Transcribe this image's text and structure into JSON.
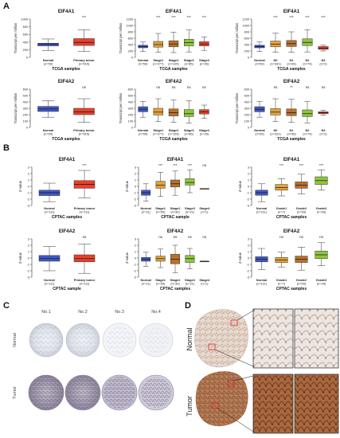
{
  "panels": {
    "A": "A",
    "B": "B",
    "C": "C",
    "D": "D"
  },
  "ylabels": {
    "tpm": "Transcript per million",
    "z": "Z-value"
  },
  "chart_data": [
    {
      "id": "A1",
      "type": "box",
      "title": "EIF4A1",
      "xlabel": "TCGA samples",
      "ylim": [
        0,
        1000
      ],
      "yticks": [
        0,
        200,
        400,
        600,
        800,
        1000
      ],
      "categories": [
        "Normal\n(n=59)",
        "Primary tumor\n(n=515)"
      ],
      "colors": [
        "#3f58c9",
        "#e8412b"
      ],
      "sig": [
        "",
        "***"
      ],
      "boxes": [
        {
          "min": 180,
          "q1": 300,
          "med": 340,
          "q3": 370,
          "max": 480
        },
        {
          "min": 150,
          "q1": 310,
          "med": 390,
          "q3": 490,
          "max": 720
        }
      ]
    },
    {
      "id": "A2",
      "type": "box",
      "title": "EIF4A1",
      "xlabel": "TCGA samples",
      "ylim": [
        0,
        1200
      ],
      "yticks": [
        0,
        200,
        400,
        600,
        800,
        1000,
        1200
      ],
      "categories": [
        "Normal\n(n=59)",
        "Stage1\n(n=277)",
        "Stage2\n(n=125)",
        "Stage3\n(n=85)",
        "Stage4\n(n=26)"
      ],
      "colors": [
        "#3f58c9",
        "#e4a23a",
        "#b9702c",
        "#8fc63c",
        "#e8412b"
      ],
      "sig": [
        "",
        "***",
        "***",
        "***",
        "***"
      ],
      "boxes": [
        {
          "min": 180,
          "q1": 300,
          "med": 340,
          "q3": 380,
          "max": 480
        },
        {
          "min": 160,
          "q1": 320,
          "med": 400,
          "q3": 500,
          "max": 750
        },
        {
          "min": 150,
          "q1": 330,
          "med": 420,
          "q3": 520,
          "max": 790
        },
        {
          "min": 170,
          "q1": 360,
          "med": 460,
          "q3": 570,
          "max": 860
        },
        {
          "min": 220,
          "q1": 360,
          "med": 420,
          "q3": 490,
          "max": 640
        }
      ]
    },
    {
      "id": "A3",
      "type": "box",
      "title": "EIF4A1",
      "xlabel": "TCGA samples",
      "ylim": [
        0,
        1200
      ],
      "yticks": [
        0,
        200,
        400,
        600,
        800,
        1000,
        1200
      ],
      "categories": [
        "Normal\n(n=59)",
        "N0\n(n=331)",
        "N1\n(n=96)",
        "N2\n(n=74)",
        "N3\n(n=2)"
      ],
      "colors": [
        "#3f58c9",
        "#e4a23a",
        "#b9702c",
        "#8fc63c",
        "#e8412b"
      ],
      "sig": [
        "",
        "***",
        "***",
        "***",
        "***"
      ],
      "boxes": [
        {
          "min": 180,
          "q1": 300,
          "med": 340,
          "q3": 380,
          "max": 480
        },
        {
          "min": 160,
          "q1": 330,
          "med": 410,
          "q3": 510,
          "max": 760
        },
        {
          "min": 160,
          "q1": 340,
          "med": 430,
          "q3": 530,
          "max": 800
        },
        {
          "min": 170,
          "q1": 370,
          "med": 470,
          "q3": 580,
          "max": 870
        },
        {
          "min": 200,
          "q1": 250,
          "med": 290,
          "q3": 340,
          "max": 380
        }
      ]
    },
    {
      "id": "A4",
      "type": "box",
      "title": "EIF4A2",
      "xlabel": "TCGA samples",
      "ylim": [
        0,
        600
      ],
      "yticks": [
        0,
        100,
        200,
        300,
        400,
        500,
        600
      ],
      "categories": [
        "Normal\n(n=59)",
        "Primary tumor\n(n=515)"
      ],
      "colors": [
        "#3f58c9",
        "#e8412b"
      ],
      "sig": [
        "",
        "ns"
      ],
      "boxes": [
        {
          "min": 160,
          "q1": 250,
          "med": 290,
          "q3": 330,
          "max": 420
        },
        {
          "min": 80,
          "q1": 200,
          "med": 245,
          "q3": 300,
          "max": 450
        }
      ]
    },
    {
      "id": "A5",
      "type": "box",
      "title": "EIF4A2",
      "xlabel": "TCGA samples",
      "ylim": [
        0,
        600
      ],
      "yticks": [
        0,
        100,
        200,
        300,
        400,
        500,
        600
      ],
      "categories": [
        "Normal\n(n=59)",
        "Stage1\n(n=277)",
        "Stage2\n(n=125)",
        "Stage3\n(n=85)",
        "Stage4\n(n=26)"
      ],
      "colors": [
        "#3f58c9",
        "#e4a23a",
        "#b9702c",
        "#8fc63c",
        "#e8412b"
      ],
      "sig": [
        "",
        "ns",
        "ns",
        "ns",
        "ns"
      ],
      "boxes": [
        {
          "min": 160,
          "q1": 245,
          "med": 285,
          "q3": 325,
          "max": 410
        },
        {
          "min": 90,
          "q1": 195,
          "med": 240,
          "q3": 300,
          "max": 450
        },
        {
          "min": 80,
          "q1": 180,
          "med": 230,
          "q3": 290,
          "max": 430
        },
        {
          "min": 70,
          "q1": 170,
          "med": 215,
          "q3": 280,
          "max": 420
        },
        {
          "min": 140,
          "q1": 210,
          "med": 245,
          "q3": 280,
          "max": 350
        }
      ]
    },
    {
      "id": "A6",
      "type": "box",
      "title": "EIF4A2",
      "xlabel": "TCGA samples",
      "ylim": [
        0,
        600
      ],
      "yticks": [
        0,
        100,
        200,
        300,
        400,
        500,
        600
      ],
      "categories": [
        "Normal\n(n=59)",
        "N0\n(n=331)",
        "N1\n(n=96)",
        "N2\n(n=74)",
        "N3\n(n=2)"
      ],
      "colors": [
        "#3f58c9",
        "#e4a23a",
        "#b9702c",
        "#8fc63c",
        "#e8412b"
      ],
      "sig": [
        "",
        "ns",
        "**",
        "ns",
        "ns"
      ],
      "boxes": [
        {
          "min": 160,
          "q1": 245,
          "med": 285,
          "q3": 325,
          "max": 410
        },
        {
          "min": 90,
          "q1": 195,
          "med": 240,
          "q3": 295,
          "max": 450
        },
        {
          "min": 80,
          "q1": 185,
          "med": 230,
          "q3": 290,
          "max": 440
        },
        {
          "min": 70,
          "q1": 170,
          "med": 215,
          "q3": 275,
          "max": 410
        },
        {
          "min": 190,
          "q1": 215,
          "med": 230,
          "q3": 245,
          "max": 270
        }
      ]
    },
    {
      "id": "B1",
      "type": "box",
      "title": "EIF4A1",
      "xlabel": "CPTAC samples",
      "ylim": [
        -3,
        3
      ],
      "yticks": [
        -3,
        -2,
        -1,
        0,
        1,
        2,
        3
      ],
      "categories": [
        "Normal\n(n=111)",
        "Primary tumor\n(n=111)"
      ],
      "colors": [
        "#3f58c9",
        "#e8412b"
      ],
      "sig": [
        "",
        "***"
      ],
      "boxes": [
        {
          "min": -2.4,
          "q1": -1.45,
          "med": -1.0,
          "q3": -0.6,
          "max": 0.5
        },
        {
          "min": -1.8,
          "q1": -0.3,
          "med": 0.3,
          "q3": 0.9,
          "max": 2.5
        }
      ]
    },
    {
      "id": "B2",
      "type": "box",
      "title": "EIF4A1",
      "xlabel": "CPTAC sample",
      "ylim": [
        -3,
        3
      ],
      "yticks": [
        -3,
        -2,
        -1,
        0,
        1,
        2,
        3
      ],
      "categories": [
        "Normal\n(n=11)",
        "Stage1\n(n=59)",
        "Stage2\n(n=30)",
        "Stage3\n(n=21)",
        "Stage4\n(n=1)"
      ],
      "colors": [
        "#3f58c9",
        "#e4a23a",
        "#b9702c",
        "#8fc63c",
        "#e8412b"
      ],
      "sig": [
        "",
        "***",
        "***",
        "***",
        "ns"
      ],
      "boxes": [
        {
          "min": -2.3,
          "q1": -1.4,
          "med": -1.0,
          "q3": -0.6,
          "max": 0.4
        },
        {
          "min": -1.6,
          "q1": -0.3,
          "med": 0.2,
          "q3": 0.8,
          "max": 2.2
        },
        {
          "min": -1.4,
          "q1": -0.1,
          "med": 0.4,
          "q3": 1.0,
          "max": 2.4
        },
        {
          "min": -1.0,
          "q1": 0.2,
          "med": 0.6,
          "q3": 1.2,
          "max": 2.6
        },
        {
          "min": -0.35,
          "q1": -0.35,
          "med": -0.35,
          "q3": -0.35,
          "max": -0.35
        }
      ]
    },
    {
      "id": "B3",
      "type": "box",
      "title": "EIF4A1",
      "xlabel": "CPTAC samples",
      "ylim": [
        -3,
        3
      ],
      "yticks": [
        -3,
        -2,
        -1,
        0,
        1,
        2,
        3
      ],
      "categories": [
        "Normal\n(n=111)",
        "Grade1\n(n=7)",
        "Grade2\n(n=59)",
        "Grade3\n(n=39)"
      ],
      "colors": [
        "#3f58c9",
        "#e4a23a",
        "#b9702c",
        "#8fc63c"
      ],
      "sig": [
        "",
        "***",
        "***",
        "***"
      ],
      "boxes": [
        {
          "min": -2.4,
          "q1": -1.4,
          "med": -1.0,
          "q3": -0.6,
          "max": 0.4
        },
        {
          "min": -1.5,
          "q1": -0.6,
          "med": -0.2,
          "q3": 0.3,
          "max": 1.2
        },
        {
          "min": -1.2,
          "q1": -0.3,
          "med": 0.2,
          "q3": 0.7,
          "max": 1.9
        },
        {
          "min": -0.6,
          "q1": 0.3,
          "med": 0.9,
          "q3": 1.5,
          "max": 2.6
        }
      ]
    },
    {
      "id": "B4",
      "type": "box",
      "title": "EIF4A2",
      "xlabel": "CPTAC sample",
      "ylim": [
        -3,
        3
      ],
      "yticks": [
        -3,
        -2,
        -1,
        0,
        1,
        2,
        3
      ],
      "categories": [
        "Normal\n(n=111)",
        "Primary tumor\n(n=111)"
      ],
      "colors": [
        "#3f58c9",
        "#e8412b"
      ],
      "sig": [
        "",
        "ns"
      ],
      "boxes": [
        {
          "min": -2.0,
          "q1": -0.5,
          "med": -0.1,
          "q3": 0.4,
          "max": 1.8
        },
        {
          "min": -2.4,
          "q1": -0.6,
          "med": -0.1,
          "q3": 0.5,
          "max": 2.2
        }
      ]
    },
    {
      "id": "B5",
      "type": "box",
      "title": "EIF4A2",
      "xlabel": "CPTAC samples",
      "ylim": [
        -3,
        3
      ],
      "yticks": [
        -3,
        -2,
        -1,
        0,
        1,
        2,
        3
      ],
      "categories": [
        "Normal\n(n=11)",
        "Stage1\n(n=59)",
        "Stage2\n(n=30)",
        "Stage3\n(n=21)",
        "Stage4\n(n=1)"
      ],
      "colors": [
        "#3f58c9",
        "#e4a23a",
        "#b9702c",
        "#8fc63c",
        "#e8412b"
      ],
      "sig": [
        "",
        "ns",
        "ns",
        "ns",
        "ns"
      ],
      "boxes": [
        {
          "min": -1.3,
          "q1": -0.5,
          "med": -0.2,
          "q3": 0.1,
          "max": 0.9
        },
        {
          "min": -1.5,
          "q1": -0.5,
          "med": -0.1,
          "q3": 0.3,
          "max": 1.4
        },
        {
          "min": -2.3,
          "q1": -0.9,
          "med": -0.2,
          "q3": 0.6,
          "max": 2.0
        },
        {
          "min": -1.7,
          "q1": -0.7,
          "med": -0.1,
          "q3": 0.4,
          "max": 1.5
        },
        {
          "min": -0.5,
          "q1": -0.5,
          "med": -0.5,
          "q3": -0.5,
          "max": -0.5
        }
      ]
    },
    {
      "id": "B6",
      "type": "box",
      "title": "EIF4A2",
      "xlabel": "CPTAC samples",
      "ylim": [
        -3,
        3
      ],
      "yticks": [
        -3,
        -2,
        -1,
        0,
        1,
        2,
        3
      ],
      "categories": [
        "Normal\n(n=111)",
        "Grade1\n(n=7)",
        "Grade2\n(n=59)",
        "Grade3\n(n=39)"
      ],
      "colors": [
        "#3f58c9",
        "#e4a23a",
        "#b9702c",
        "#8fc63c"
      ],
      "sig": [
        "",
        "ns",
        "ns",
        "ns"
      ],
      "boxes": [
        {
          "min": -1.8,
          "q1": -0.6,
          "med": -0.2,
          "q3": 0.2,
          "max": 1.5
        },
        {
          "min": -1.4,
          "q1": -0.7,
          "med": -0.3,
          "q3": 0.1,
          "max": 0.9
        },
        {
          "min": -1.9,
          "q1": -0.7,
          "med": -0.2,
          "q3": 0.3,
          "max": 1.7
        },
        {
          "min": -1.2,
          "q1": -0.1,
          "med": 0.5,
          "q3": 1.1,
          "max": 2.4
        }
      ]
    }
  ],
  "ihc": {
    "columns": [
      "No.1",
      "No.2",
      "No.3",
      "No.4"
    ],
    "rows": [
      "Normal",
      "Tumor"
    ]
  },
  "tissue": {
    "rows": [
      "Normal",
      "Tumor"
    ]
  }
}
